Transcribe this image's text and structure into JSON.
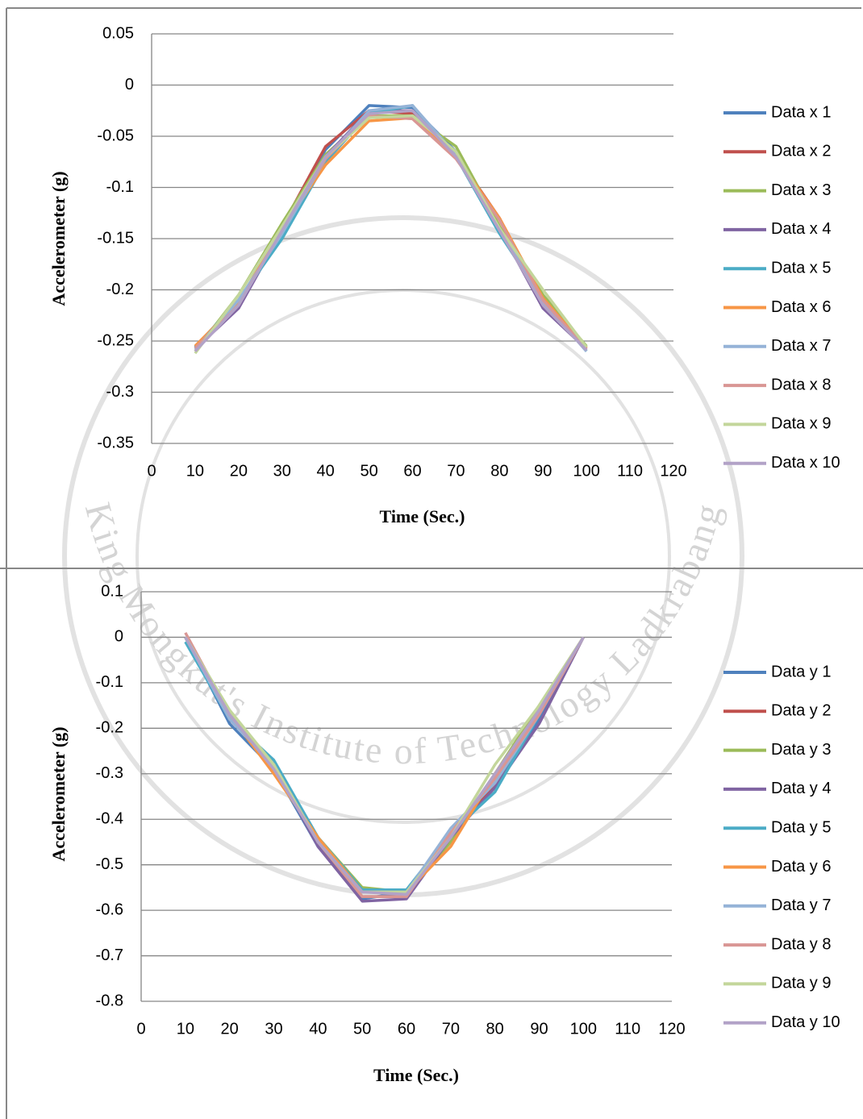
{
  "watermark": "King Mongkut's Institute of Technology Ladkrabang",
  "chart_data": [
    {
      "type": "line",
      "x_label": "Time (Sec.)",
      "y_label": "Accelerometer (g)",
      "x": [
        10,
        20,
        30,
        40,
        50,
        60,
        70,
        80,
        90,
        100
      ],
      "xlim": [
        0,
        120
      ],
      "xticks": [
        0,
        10,
        20,
        30,
        40,
        50,
        60,
        70,
        80,
        90,
        100,
        110,
        120
      ],
      "ylim": [
        -0.35,
        0.05
      ],
      "yticks": [
        0.05,
        0,
        -0.05,
        -0.1,
        -0.15,
        -0.2,
        -0.25,
        -0.3,
        -0.35
      ],
      "grid": true,
      "legend": "right",
      "series": [
        {
          "name": "Data x 1",
          "color": "#4f81bd",
          "values": [
            -0.257,
            -0.215,
            -0.14,
            -0.063,
            -0.02,
            -0.022,
            -0.065,
            -0.14,
            -0.215,
            -0.258
          ]
        },
        {
          "name": "Data x 2",
          "color": "#c0504d",
          "values": [
            -0.255,
            -0.213,
            -0.138,
            -0.06,
            -0.025,
            -0.028,
            -0.068,
            -0.13,
            -0.212,
            -0.256
          ]
        },
        {
          "name": "Data x 3",
          "color": "#9bbb59",
          "values": [
            -0.26,
            -0.205,
            -0.135,
            -0.068,
            -0.03,
            -0.03,
            -0.06,
            -0.138,
            -0.205,
            -0.255
          ]
        },
        {
          "name": "Data x 4",
          "color": "#8064a2",
          "values": [
            -0.258,
            -0.218,
            -0.142,
            -0.07,
            -0.025,
            -0.025,
            -0.07,
            -0.14,
            -0.218,
            -0.258
          ]
        },
        {
          "name": "Data x 5",
          "color": "#4bacc6",
          "values": [
            -0.256,
            -0.21,
            -0.15,
            -0.075,
            -0.028,
            -0.02,
            -0.07,
            -0.145,
            -0.21,
            -0.26
          ]
        },
        {
          "name": "Data x 6",
          "color": "#f79646",
          "values": [
            -0.255,
            -0.212,
            -0.14,
            -0.078,
            -0.035,
            -0.032,
            -0.07,
            -0.13,
            -0.208,
            -0.257
          ]
        },
        {
          "name": "Data x 7",
          "color": "#95b3d7",
          "values": [
            -0.258,
            -0.21,
            -0.145,
            -0.072,
            -0.025,
            -0.02,
            -0.068,
            -0.14,
            -0.212,
            -0.26
          ]
        },
        {
          "name": "Data x 8",
          "color": "#d99694",
          "values": [
            -0.257,
            -0.215,
            -0.14,
            -0.072,
            -0.03,
            -0.033,
            -0.072,
            -0.132,
            -0.21,
            -0.258
          ]
        },
        {
          "name": "Data x 9",
          "color": "#c3d69b",
          "values": [
            -0.262,
            -0.205,
            -0.138,
            -0.07,
            -0.032,
            -0.03,
            -0.065,
            -0.14,
            -0.2,
            -0.256
          ]
        },
        {
          "name": "Data x 10",
          "color": "#b2a2c7",
          "values": [
            -0.26,
            -0.215,
            -0.142,
            -0.07,
            -0.028,
            -0.025,
            -0.07,
            -0.142,
            -0.215,
            -0.259
          ]
        }
      ]
    },
    {
      "type": "line",
      "x_label": "Time (Sec.)",
      "y_label": "Accelerometer (g)",
      "x": [
        10,
        20,
        30,
        40,
        50,
        60,
        70,
        80,
        90,
        100
      ],
      "xlim": [
        0,
        120
      ],
      "xticks": [
        0,
        10,
        20,
        30,
        40,
        50,
        60,
        70,
        80,
        90,
        100,
        110,
        120
      ],
      "ylim": [
        -0.8,
        0.1
      ],
      "yticks": [
        0.1,
        0,
        -0.1,
        -0.2,
        -0.3,
        -0.4,
        -0.5,
        -0.6,
        -0.7,
        -0.8
      ],
      "grid": true,
      "legend": "right",
      "series": [
        {
          "name": "Data y 1",
          "color": "#4f81bd",
          "values": [
            0,
            -0.19,
            -0.29,
            -0.46,
            -0.575,
            -0.56,
            -0.43,
            -0.33,
            -0.18,
            0
          ]
        },
        {
          "name": "Data y 2",
          "color": "#c0504d",
          "values": [
            0,
            -0.18,
            -0.28,
            -0.45,
            -0.57,
            -0.57,
            -0.44,
            -0.32,
            -0.17,
            0
          ]
        },
        {
          "name": "Data y 3",
          "color": "#9bbb59",
          "values": [
            0,
            -0.17,
            -0.28,
            -0.44,
            -0.55,
            -0.56,
            -0.45,
            -0.3,
            -0.15,
            0
          ]
        },
        {
          "name": "Data y 4",
          "color": "#8064a2",
          "values": [
            0,
            -0.18,
            -0.28,
            -0.46,
            -0.58,
            -0.575,
            -0.44,
            -0.33,
            -0.19,
            0
          ]
        },
        {
          "name": "Data y 5",
          "color": "#4bacc6",
          "values": [
            -0.01,
            -0.18,
            -0.27,
            -0.44,
            -0.555,
            -0.555,
            -0.43,
            -0.34,
            -0.17,
            0
          ]
        },
        {
          "name": "Data y 6",
          "color": "#f79646",
          "values": [
            0,
            -0.17,
            -0.3,
            -0.44,
            -0.56,
            -0.56,
            -0.46,
            -0.3,
            -0.16,
            0
          ]
        },
        {
          "name": "Data y 7",
          "color": "#95b3d7",
          "values": [
            0,
            -0.18,
            -0.28,
            -0.45,
            -0.56,
            -0.56,
            -0.42,
            -0.32,
            -0.17,
            0
          ]
        },
        {
          "name": "Data y 8",
          "color": "#d99694",
          "values": [
            0.01,
            -0.17,
            -0.28,
            -0.45,
            -0.57,
            -0.57,
            -0.43,
            -0.31,
            -0.17,
            0
          ]
        },
        {
          "name": "Data y 9",
          "color": "#c3d69b",
          "values": [
            0,
            -0.16,
            -0.28,
            -0.45,
            -0.56,
            -0.56,
            -0.44,
            -0.28,
            -0.15,
            0
          ]
        },
        {
          "name": "Data y 10",
          "color": "#b2a2c7",
          "values": [
            0,
            -0.17,
            -0.29,
            -0.45,
            -0.56,
            -0.565,
            -0.44,
            -0.3,
            -0.16,
            0
          ]
        }
      ]
    }
  ]
}
